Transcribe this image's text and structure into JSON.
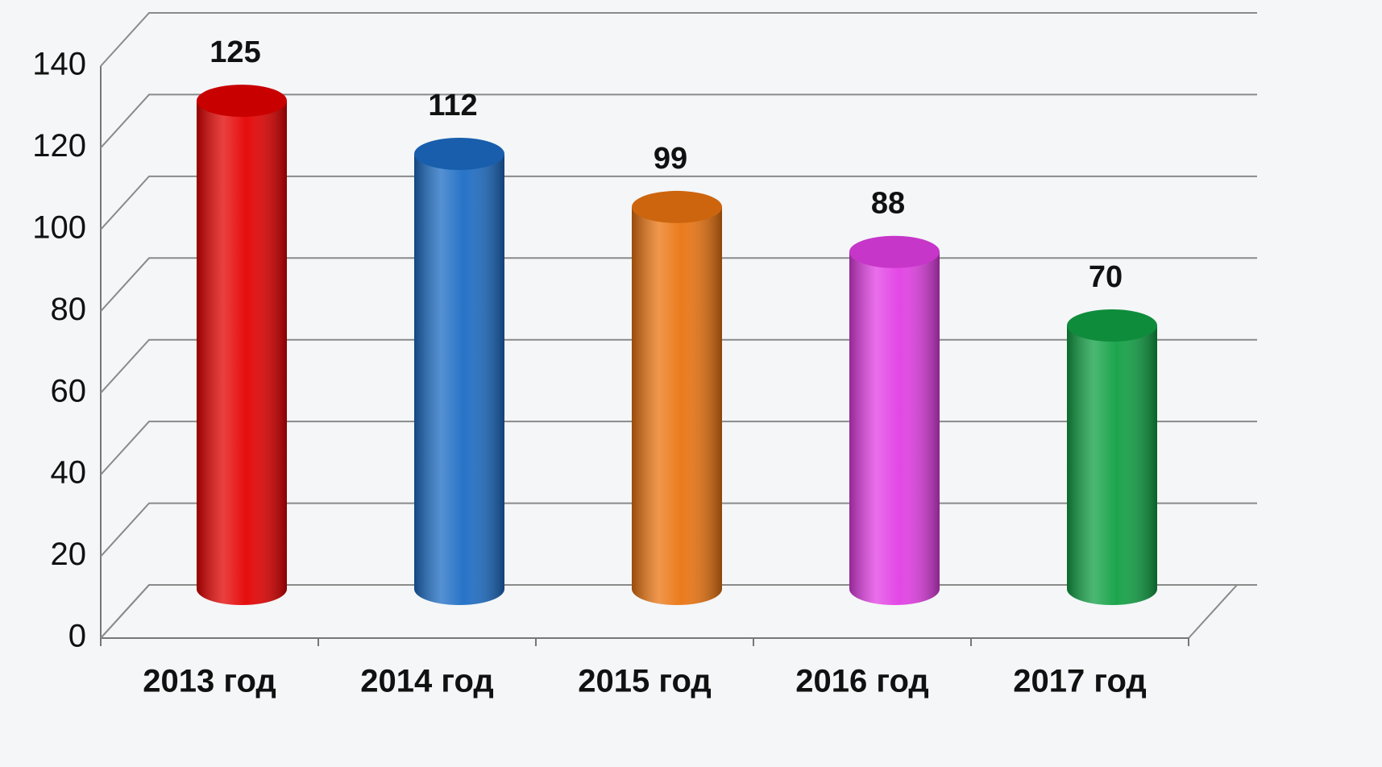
{
  "chart_data": {
    "type": "bar",
    "categories": [
      "2013 год",
      "2014 год",
      "2015 год",
      "2016 год",
      "2017 год"
    ],
    "values": [
      125,
      112,
      99,
      88,
      70
    ],
    "colors": [
      "#e40000",
      "#1c6cc4",
      "#ea7410",
      "#e23ee4",
      "#10a044"
    ],
    "ylim": [
      0,
      140
    ],
    "yticks": [
      0,
      20,
      40,
      60,
      80,
      100,
      120,
      140
    ],
    "grid": true
  }
}
